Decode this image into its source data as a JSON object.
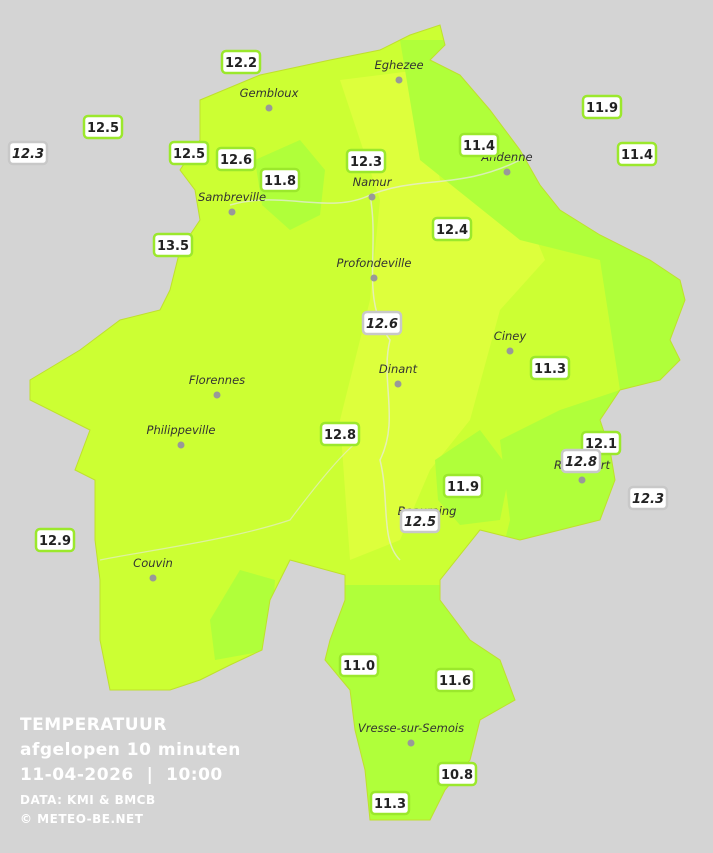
{
  "legend": {
    "title": "TEMPERATUUR",
    "subtitle": "afgelopen 10 minuten",
    "datetime": "11-04-2026  |  10:00",
    "source": "DATA: KMI & BMCB",
    "credit": "© METEO-BE.NET"
  },
  "places": [
    "Eghezee",
    "Gembloux",
    "Andenne",
    "Namur",
    "Sambreville",
    "Profondeville",
    "Ciney",
    "Dinant",
    "Florennes",
    "Philippeville",
    "Rochefort",
    "Beauraing",
    "Couvin",
    "Vresse-sur-Semois"
  ],
  "stations": [
    "12.2",
    "12.5",
    "12.3",
    "12.5",
    "12.6",
    "11.8",
    "12.3",
    "11.4",
    "11.9",
    "11.4",
    "13.5",
    "12.4",
    "12.6",
    "11.3",
    "12.8",
    "12.1",
    "12.8",
    "12.3",
    "11.9",
    "12.5",
    "12.9",
    "11.0",
    "11.6",
    "10.8",
    "11.3"
  ]
}
